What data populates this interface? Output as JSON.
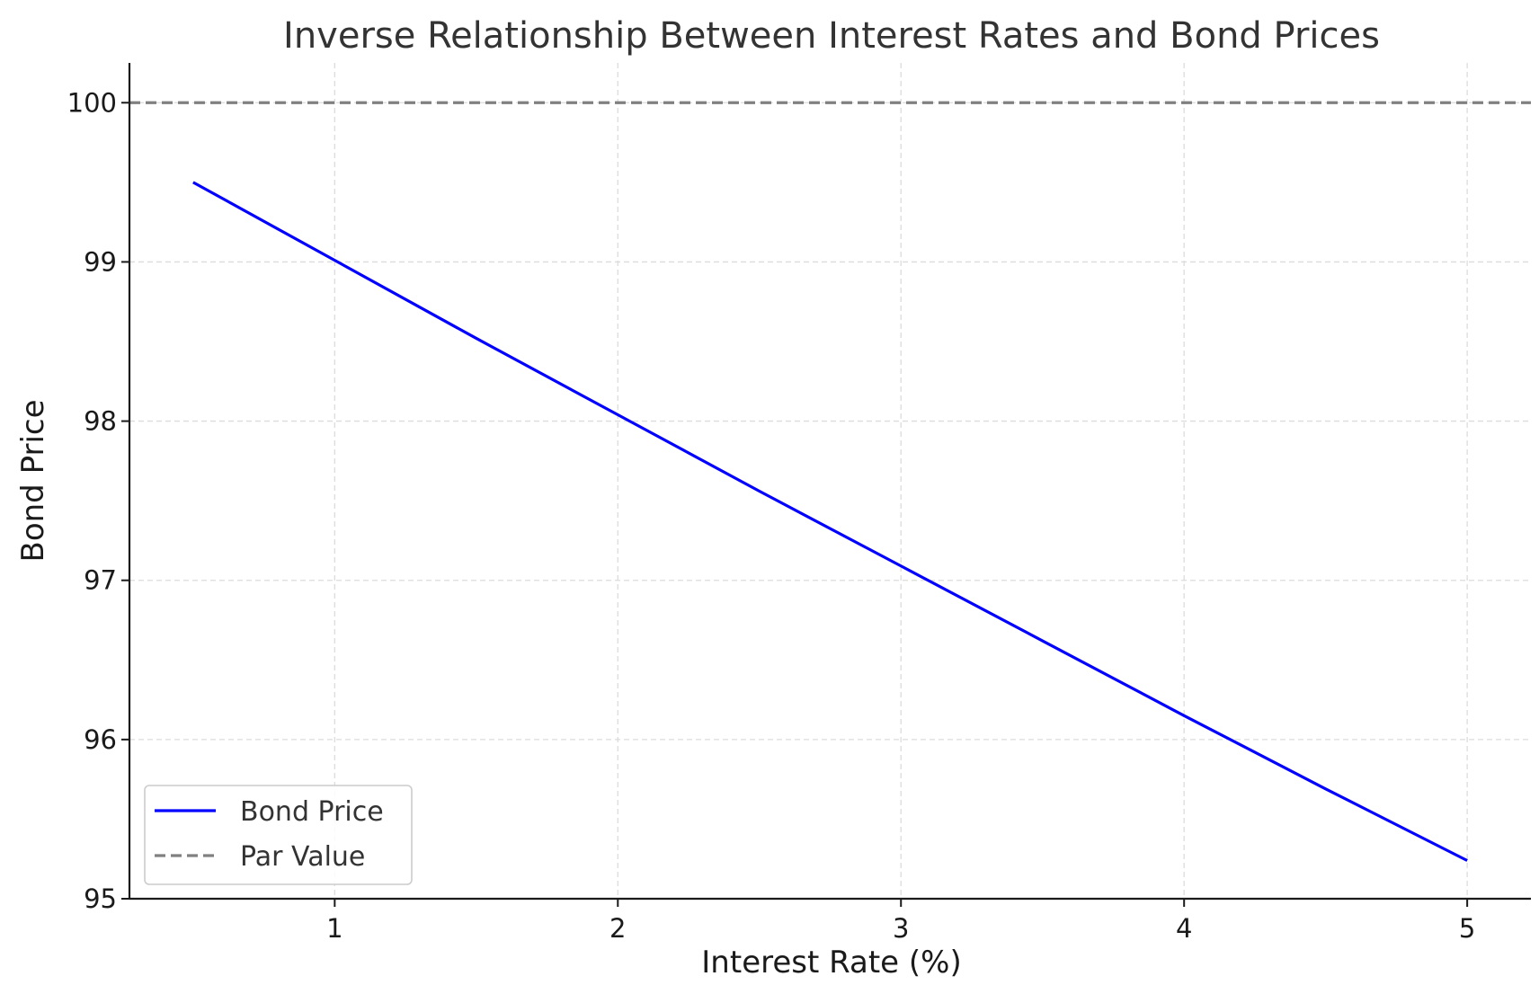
{
  "chart_data": {
    "type": "line",
    "title": "Inverse Relationship Between Interest Rates and Bond Prices",
    "xlabel": "Interest Rate (%)",
    "ylabel": "Bond Price",
    "xlim": [
      0.275,
      5.225
    ],
    "ylim": [
      95.0,
      100.25
    ],
    "xticks": [
      1,
      2,
      3,
      4,
      5
    ],
    "yticks": [
      95,
      96,
      97,
      98,
      99,
      100
    ],
    "grid": true,
    "legend_position": "lower-left",
    "series": [
      {
        "name": "Bond Price",
        "color": "#0000ff",
        "style": "solid",
        "x": [
          0.5,
          1.0,
          1.5,
          2.0,
          2.5,
          3.0,
          3.5,
          4.0,
          4.5,
          5.0
        ],
        "y": [
          99.5,
          99.01,
          98.52,
          98.04,
          97.56,
          97.09,
          96.62,
          96.15,
          95.69,
          95.24
        ]
      }
    ],
    "reference_lines": [
      {
        "name": "Par Value",
        "orientation": "horizontal",
        "value": 100,
        "color": "#808080",
        "style": "dashed"
      }
    ]
  }
}
